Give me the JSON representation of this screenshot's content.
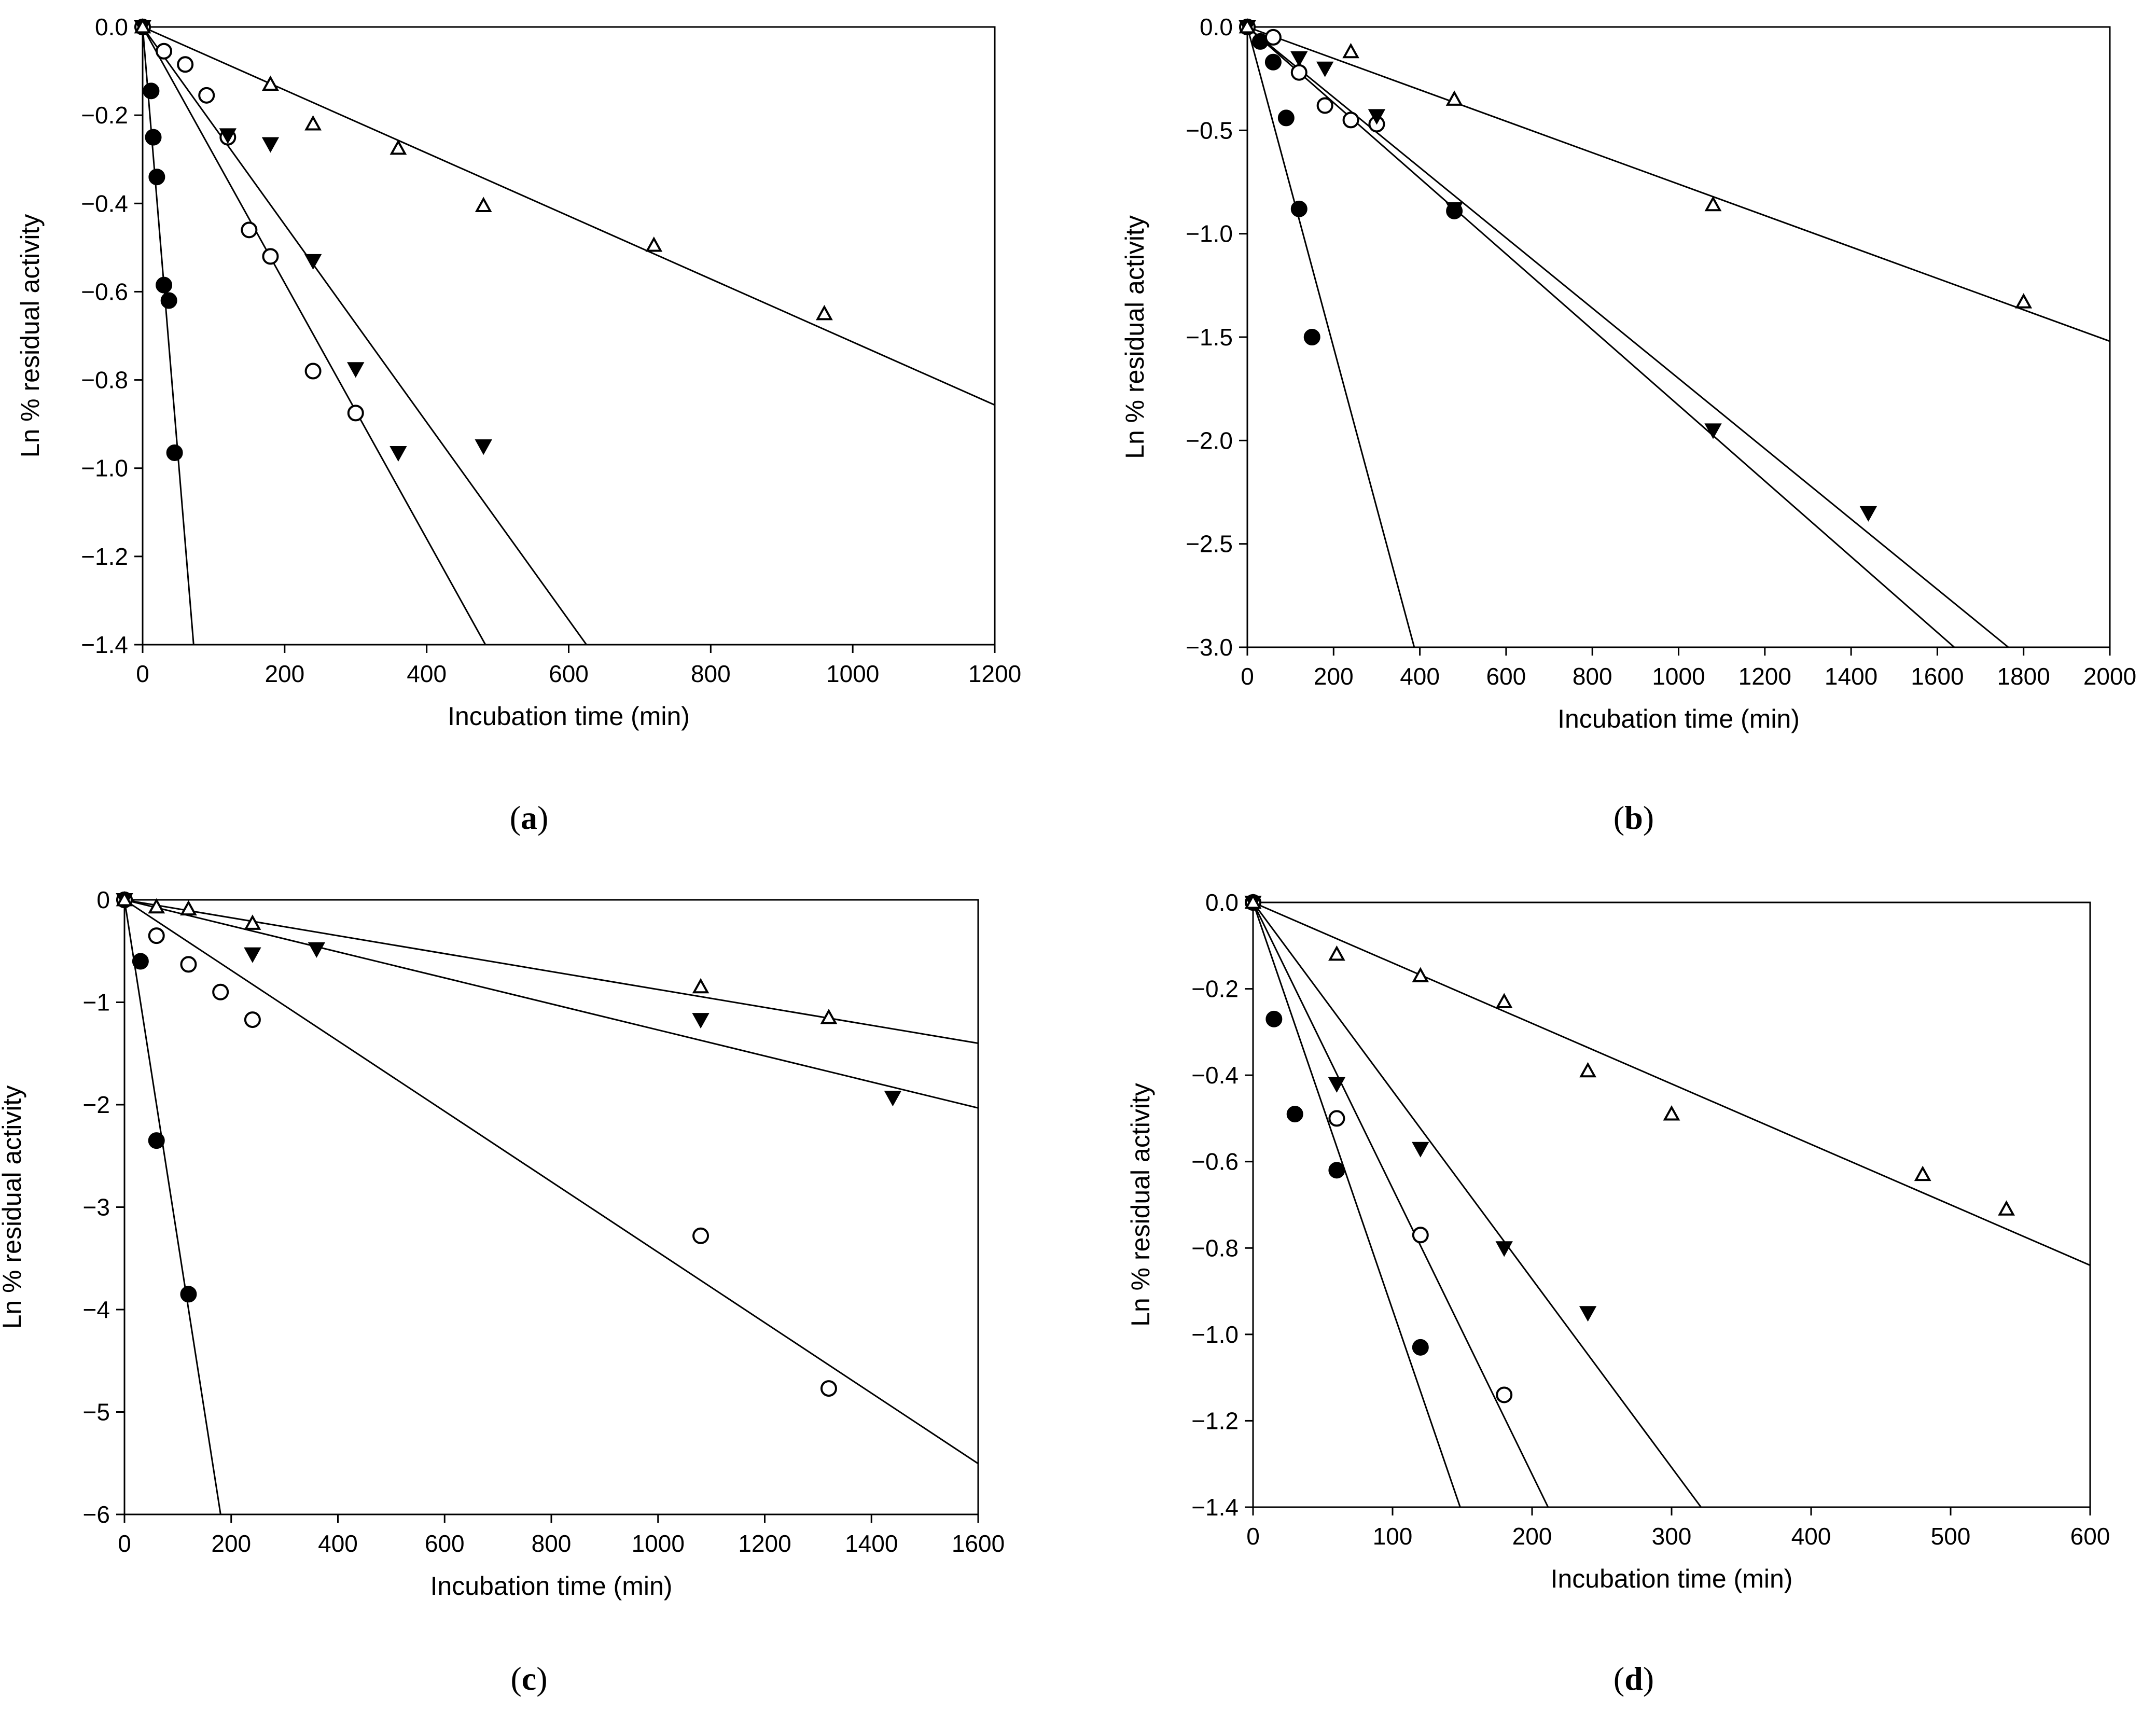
{
  "chart_data": [
    {
      "type": "scatter",
      "panel_label": "a",
      "xlabel": "Incubation time (min)",
      "ylabel": "Ln % residual activity",
      "xlim": [
        0,
        1200
      ],
      "ylim": [
        -1.4,
        0.0
      ],
      "xticks": [
        0,
        200,
        400,
        600,
        800,
        1000,
        1200
      ],
      "yticks": [
        0.0,
        -0.2,
        -0.4,
        -0.6,
        -0.8,
        -1.0,
        -1.2,
        -1.4
      ],
      "tick_decimals": 1,
      "series": [
        {
          "name": "filled circle",
          "marker": "filled-circle",
          "slope": -0.0195,
          "points": [
            [
              0,
              0
            ],
            [
              12,
              -0.145
            ],
            [
              15,
              -0.25
            ],
            [
              20,
              -0.34
            ],
            [
              30,
              -0.585
            ],
            [
              37,
              -0.62
            ],
            [
              45,
              -0.965
            ]
          ]
        },
        {
          "name": "open circle",
          "marker": "open-circle",
          "slope": -0.0029,
          "points": [
            [
              0,
              0
            ],
            [
              30,
              -0.055
            ],
            [
              60,
              -0.085
            ],
            [
              90,
              -0.155
            ],
            [
              120,
              -0.25
            ],
            [
              150,
              -0.46
            ],
            [
              180,
              -0.52
            ],
            [
              240,
              -0.78
            ],
            [
              300,
              -0.875
            ]
          ]
        },
        {
          "name": "filled triangle",
          "marker": "filled-triangle-down",
          "slope": -0.00224,
          "points": [
            [
              0,
              0
            ],
            [
              120,
              -0.245
            ],
            [
              180,
              -0.265
            ],
            [
              240,
              -0.53
            ],
            [
              300,
              -0.775
            ],
            [
              360,
              -0.965
            ],
            [
              480,
              -0.95
            ]
          ]
        },
        {
          "name": "open triangle",
          "marker": "open-triangle-up",
          "slope": -0.000714,
          "points": [
            [
              0,
              0
            ],
            [
              180,
              -0.13
            ],
            [
              240,
              -0.22
            ],
            [
              360,
              -0.275
            ],
            [
              480,
              -0.405
            ],
            [
              720,
              -0.495
            ],
            [
              960,
              -0.65
            ]
          ]
        }
      ]
    },
    {
      "type": "scatter",
      "panel_label": "b",
      "xlabel": "Incubation time (min)",
      "ylabel": "Ln % residual activity",
      "xlim": [
        0,
        2000
      ],
      "ylim": [
        -3.0,
        0.0
      ],
      "xticks": [
        0,
        200,
        400,
        600,
        800,
        1000,
        1200,
        1400,
        1600,
        1800,
        2000
      ],
      "yticks": [
        0.0,
        -0.5,
        -1.0,
        -1.5,
        -2.0,
        -2.5,
        -3.0
      ],
      "tick_decimals": 1,
      "series": [
        {
          "name": "filled circle",
          "marker": "filled-circle",
          "slope": -0.00775,
          "points": [
            [
              0,
              0
            ],
            [
              30,
              -0.07
            ],
            [
              60,
              -0.17
            ],
            [
              90,
              -0.44
            ],
            [
              120,
              -0.88
            ],
            [
              150,
              -1.5
            ],
            [
              480,
              -0.89
            ]
          ]
        },
        {
          "name": "open circle",
          "marker": "open-circle",
          "slope": -0.00183,
          "points": [
            [
              0,
              0
            ],
            [
              60,
              -0.05
            ],
            [
              120,
              -0.22
            ],
            [
              180,
              -0.38
            ],
            [
              240,
              -0.45
            ],
            [
              300,
              -0.47
            ]
          ]
        },
        {
          "name": "filled triangle",
          "marker": "filled-triangle-down",
          "slope": -0.0017,
          "points": [
            [
              0,
              0
            ],
            [
              120,
              -0.15
            ],
            [
              180,
              -0.2
            ],
            [
              300,
              -0.43
            ],
            [
              480,
              -0.88
            ],
            [
              1080,
              -1.95
            ],
            [
              1440,
              -2.35
            ]
          ]
        },
        {
          "name": "open triangle",
          "marker": "open-triangle-up",
          "slope": -0.00076,
          "points": [
            [
              0,
              0
            ],
            [
              240,
              -0.12
            ],
            [
              480,
              -0.35
            ],
            [
              1080,
              -0.86
            ],
            [
              1800,
              -1.33
            ]
          ]
        }
      ]
    },
    {
      "type": "scatter",
      "panel_label": "c",
      "xlabel": "Incubation time (min)",
      "ylabel": "Ln % residual activity",
      "xlim": [
        0,
        1600
      ],
      "ylim": [
        -6,
        0
      ],
      "xticks": [
        0,
        200,
        400,
        600,
        800,
        1000,
        1200,
        1400,
        1600
      ],
      "yticks": [
        0,
        -1,
        -2,
        -3,
        -4,
        -5,
        -6
      ],
      "tick_decimals": 0,
      "series": [
        {
          "name": "filled circle",
          "marker": "filled-circle",
          "slope": -0.0333,
          "points": [
            [
              0,
              0
            ],
            [
              30,
              -0.6
            ],
            [
              60,
              -2.35
            ],
            [
              120,
              -3.85
            ]
          ]
        },
        {
          "name": "open circle",
          "marker": "open-circle",
          "slope": -0.00344,
          "points": [
            [
              0,
              0
            ],
            [
              60,
              -0.35
            ],
            [
              120,
              -0.63
            ],
            [
              180,
              -0.9
            ],
            [
              240,
              -1.17
            ],
            [
              1080,
              -3.28
            ],
            [
              1320,
              -4.77
            ]
          ]
        },
        {
          "name": "filled triangle",
          "marker": "filled-triangle-down",
          "slope": -0.00127,
          "points": [
            [
              0,
              0
            ],
            [
              240,
              -0.53
            ],
            [
              360,
              -0.48
            ],
            [
              1080,
              -1.17
            ],
            [
              1440,
              -1.93
            ]
          ]
        },
        {
          "name": "open triangle",
          "marker": "open-triangle-up",
          "slope": -0.000875,
          "points": [
            [
              0,
              0
            ],
            [
              60,
              -0.07
            ],
            [
              120,
              -0.09
            ],
            [
              240,
              -0.23
            ],
            [
              1080,
              -0.85
            ],
            [
              1320,
              -1.15
            ]
          ]
        }
      ]
    },
    {
      "type": "scatter",
      "panel_label": "d",
      "xlabel": "Incubation time (min)",
      "ylabel": "Ln % residual activity",
      "xlim": [
        0,
        600
      ],
      "ylim": [
        -1.4,
        0.0
      ],
      "xticks": [
        0,
        100,
        200,
        300,
        400,
        500,
        600
      ],
      "yticks": [
        0.0,
        -0.2,
        -0.4,
        -0.6,
        -0.8,
        -1.0,
        -1.2,
        -1.4
      ],
      "tick_decimals": 1,
      "series": [
        {
          "name": "filled circle",
          "marker": "filled-circle",
          "slope": -0.00943,
          "points": [
            [
              0,
              0
            ],
            [
              15,
              -0.27
            ],
            [
              30,
              -0.49
            ],
            [
              60,
              -0.62
            ],
            [
              120,
              -1.03
            ]
          ]
        },
        {
          "name": "open circle",
          "marker": "open-circle",
          "slope": -0.00662,
          "points": [
            [
              0,
              0
            ],
            [
              60,
              -0.5
            ],
            [
              120,
              -0.77
            ],
            [
              180,
              -1.14
            ]
          ]
        },
        {
          "name": "filled triangle",
          "marker": "filled-triangle-down",
          "slope": -0.00436,
          "points": [
            [
              0,
              0
            ],
            [
              60,
              -0.42
            ],
            [
              120,
              -0.57
            ],
            [
              180,
              -0.8
            ],
            [
              240,
              -0.95
            ]
          ]
        },
        {
          "name": "open triangle",
          "marker": "open-triangle-up",
          "slope": -0.0014,
          "points": [
            [
              0,
              0
            ],
            [
              60,
              -0.12
            ],
            [
              120,
              -0.17
            ],
            [
              180,
              -0.23
            ],
            [
              240,
              -0.39
            ],
            [
              300,
              -0.49
            ],
            [
              480,
              -0.63
            ],
            [
              540,
              -0.71
            ]
          ]
        }
      ]
    }
  ]
}
